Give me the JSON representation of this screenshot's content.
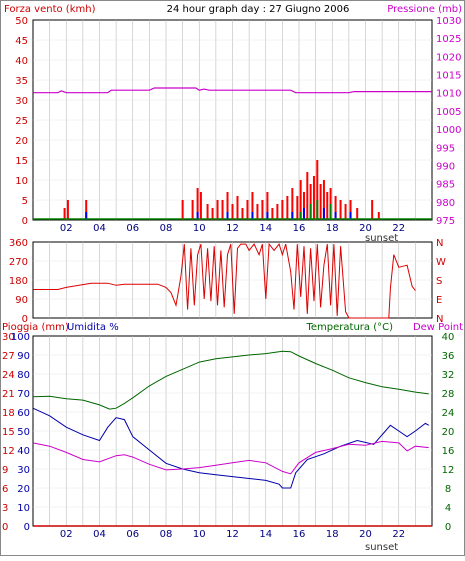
{
  "title": "24 hour graph day : 27 Giugno 2006",
  "colors": {
    "wind": "#ff0000",
    "gust_blue": "#0000ff",
    "gust_green": "#008000",
    "pressure": "#cc00cc",
    "direction": "#dd0000",
    "rain": "#cc0000",
    "humidity": "#0000aa",
    "temperature": "#006600",
    "dewpoint": "#cc00cc",
    "grid": "#bbbbbb",
    "frame": "#000000"
  },
  "chart_data": [
    {
      "type": "bar",
      "name": "wind-pressure",
      "left_label": "Forza vento (kmh)",
      "right_label": "Pressione (mb)",
      "x_ticks": [
        "02",
        "04",
        "06",
        "08",
        "10",
        "12",
        "14",
        "16",
        "18",
        "20",
        "22"
      ],
      "x_note": "sunset",
      "xlim": [
        0,
        24
      ],
      "ylim": [
        0,
        50
      ],
      "y_ticks": [
        0,
        5,
        10,
        15,
        20,
        25,
        30,
        35,
        40,
        45,
        50
      ],
      "y2lim": [
        975,
        1030
      ],
      "y2_ticks": [
        975,
        980,
        985,
        990,
        995,
        1000,
        1005,
        1010,
        1015,
        1020,
        1025,
        1030
      ],
      "wind_bars": [
        {
          "x": 1.9,
          "v": 3
        },
        {
          "x": 2.1,
          "v": 5
        },
        {
          "x": 3.2,
          "v": 5
        },
        {
          "x": 9.0,
          "v": 5
        },
        {
          "x": 9.6,
          "v": 5
        },
        {
          "x": 9.9,
          "v": 8
        },
        {
          "x": 10.1,
          "v": 7
        },
        {
          "x": 10.5,
          "v": 4
        },
        {
          "x": 10.8,
          "v": 3
        },
        {
          "x": 11.1,
          "v": 5
        },
        {
          "x": 11.4,
          "v": 5
        },
        {
          "x": 11.7,
          "v": 7
        },
        {
          "x": 12.0,
          "v": 4
        },
        {
          "x": 12.3,
          "v": 6
        },
        {
          "x": 12.6,
          "v": 3
        },
        {
          "x": 12.9,
          "v": 5
        },
        {
          "x": 13.2,
          "v": 7
        },
        {
          "x": 13.5,
          "v": 4
        },
        {
          "x": 13.8,
          "v": 5
        },
        {
          "x": 14.1,
          "v": 7
        },
        {
          "x": 14.4,
          "v": 3
        },
        {
          "x": 14.7,
          "v": 4
        },
        {
          "x": 15.0,
          "v": 5
        },
        {
          "x": 15.3,
          "v": 6
        },
        {
          "x": 15.6,
          "v": 8
        },
        {
          "x": 15.9,
          "v": 6
        },
        {
          "x": 16.1,
          "v": 10
        },
        {
          "x": 16.3,
          "v": 7
        },
        {
          "x": 16.5,
          "v": 12
        },
        {
          "x": 16.7,
          "v": 9
        },
        {
          "x": 16.9,
          "v": 11
        },
        {
          "x": 17.1,
          "v": 15
        },
        {
          "x": 17.3,
          "v": 9
        },
        {
          "x": 17.5,
          "v": 10
        },
        {
          "x": 17.7,
          "v": 7
        },
        {
          "x": 17.9,
          "v": 8
        },
        {
          "x": 18.2,
          "v": 6
        },
        {
          "x": 18.5,
          "v": 5
        },
        {
          "x": 18.8,
          "v": 4
        },
        {
          "x": 19.1,
          "v": 5
        },
        {
          "x": 19.5,
          "v": 3
        },
        {
          "x": 20.4,
          "v": 5
        },
        {
          "x": 20.8,
          "v": 2
        }
      ],
      "gust_blue_bars": [
        {
          "x": 3.2,
          "v": 2
        },
        {
          "x": 9.9,
          "v": 2
        },
        {
          "x": 11.7,
          "v": 2
        },
        {
          "x": 13.2,
          "v": 2
        },
        {
          "x": 14.1,
          "v": 2
        },
        {
          "x": 15.6,
          "v": 2
        },
        {
          "x": 16.3,
          "v": 3
        },
        {
          "x": 17.5,
          "v": 3
        },
        {
          "x": 18.2,
          "v": 2
        },
        {
          "x": 19.1,
          "v": 2
        }
      ],
      "gust_green_bars": [
        {
          "x": 16.1,
          "v": 2
        },
        {
          "x": 16.7,
          "v": 4
        },
        {
          "x": 17.1,
          "v": 5
        },
        {
          "x": 17.9,
          "v": 4
        }
      ],
      "calm_line": 0,
      "pressure": [
        {
          "x": 0,
          "v": 1010
        },
        {
          "x": 1.5,
          "v": 1010
        },
        {
          "x": 1.7,
          "v": 1010.5
        },
        {
          "x": 2.0,
          "v": 1010
        },
        {
          "x": 4.5,
          "v": 1010
        },
        {
          "x": 4.7,
          "v": 1010.7
        },
        {
          "x": 6.0,
          "v": 1010.7
        },
        {
          "x": 7.0,
          "v": 1010.7
        },
        {
          "x": 7.3,
          "v": 1011.3
        },
        {
          "x": 9.8,
          "v": 1011.3
        },
        {
          "x": 10.0,
          "v": 1010.7
        },
        {
          "x": 10.3,
          "v": 1011.0
        },
        {
          "x": 10.6,
          "v": 1010.7
        },
        {
          "x": 15.5,
          "v": 1010.7
        },
        {
          "x": 15.8,
          "v": 1010
        },
        {
          "x": 19.0,
          "v": 1010
        },
        {
          "x": 19.3,
          "v": 1010.3
        },
        {
          "x": 24.0,
          "v": 1010.3
        }
      ]
    },
    {
      "type": "scatter",
      "name": "wind-direction",
      "left_ticks": [
        "360",
        "270",
        "180",
        "90",
        "0"
      ],
      "right_ticks": [
        "N",
        "W",
        "S",
        "E",
        "N"
      ],
      "ylim": [
        0,
        360
      ],
      "x_ticks": [
        "02",
        "04",
        "06",
        "08",
        "10",
        "12",
        "14",
        "16",
        "18",
        "20",
        "22"
      ],
      "series": [
        {
          "x": 0,
          "v": 135
        },
        {
          "x": 1.5,
          "v": 135
        },
        {
          "x": 2.0,
          "v": 145
        },
        {
          "x": 3.5,
          "v": 165
        },
        {
          "x": 4.5,
          "v": 165
        },
        {
          "x": 5.0,
          "v": 155
        },
        {
          "x": 5.5,
          "v": 160
        },
        {
          "x": 7.5,
          "v": 160
        },
        {
          "x": 8.0,
          "v": 145
        },
        {
          "x": 8.3,
          "v": 120
        },
        {
          "x": 8.6,
          "v": 60
        },
        {
          "x": 8.9,
          "v": 200
        },
        {
          "x": 9.1,
          "v": 350
        },
        {
          "x": 9.3,
          "v": 40
        },
        {
          "x": 9.5,
          "v": 330
        },
        {
          "x": 9.7,
          "v": 60
        },
        {
          "x": 9.9,
          "v": 300
        },
        {
          "x": 10.1,
          "v": 350
        },
        {
          "x": 10.3,
          "v": 90
        },
        {
          "x": 10.5,
          "v": 330
        },
        {
          "x": 10.7,
          "v": 80
        },
        {
          "x": 10.9,
          "v": 340
        },
        {
          "x": 11.1,
          "v": 60
        },
        {
          "x": 11.3,
          "v": 320
        },
        {
          "x": 11.5,
          "v": 50
        },
        {
          "x": 11.7,
          "v": 300
        },
        {
          "x": 11.9,
          "v": 350
        },
        {
          "x": 12.1,
          "v": 20
        },
        {
          "x": 12.3,
          "v": 330
        },
        {
          "x": 12.5,
          "v": 350
        },
        {
          "x": 12.8,
          "v": 350
        },
        {
          "x": 13.0,
          "v": 320
        },
        {
          "x": 13.3,
          "v": 350
        },
        {
          "x": 13.6,
          "v": 300
        },
        {
          "x": 13.8,
          "v": 350
        },
        {
          "x": 14.0,
          "v": 90
        },
        {
          "x": 14.2,
          "v": 350
        },
        {
          "x": 14.5,
          "v": 320
        },
        {
          "x": 14.8,
          "v": 350
        },
        {
          "x": 15.0,
          "v": 300
        },
        {
          "x": 15.2,
          "v": 350
        },
        {
          "x": 15.5,
          "v": 220
        },
        {
          "x": 15.7,
          "v": 40
        },
        {
          "x": 15.9,
          "v": 350
        },
        {
          "x": 16.1,
          "v": 100
        },
        {
          "x": 16.3,
          "v": 340
        },
        {
          "x": 16.5,
          "v": 20
        },
        {
          "x": 16.7,
          "v": 330
        },
        {
          "x": 16.9,
          "v": 80
        },
        {
          "x": 17.1,
          "v": 350
        },
        {
          "x": 17.3,
          "v": 50
        },
        {
          "x": 17.5,
          "v": 250
        },
        {
          "x": 17.7,
          "v": 350
        },
        {
          "x": 17.9,
          "v": 60
        },
        {
          "x": 18.1,
          "v": 350
        },
        {
          "x": 18.3,
          "v": 10
        },
        {
          "x": 18.5,
          "v": 340
        },
        {
          "x": 18.8,
          "v": 30
        },
        {
          "x": 19.0,
          "v": 0
        },
        {
          "x": 21.4,
          "v": 0
        },
        {
          "x": 21.5,
          "v": 140
        },
        {
          "x": 21.7,
          "v": 300
        },
        {
          "x": 22.0,
          "v": 240
        },
        {
          "x": 22.5,
          "v": 250
        },
        {
          "x": 22.8,
          "v": 150
        },
        {
          "x": 23.0,
          "v": 130
        }
      ]
    },
    {
      "type": "line",
      "name": "rain-humidity-temperature",
      "left_label_1": "Pioggia (mm)",
      "left_label_2": "Umidita %",
      "right_label_1": "Temperatura (°C)",
      "right_label_2": "Dew Point",
      "rain_ticks": [
        "0",
        "3",
        "6",
        "9",
        "12",
        "15",
        "18",
        "21",
        "24",
        "27",
        "30"
      ],
      "humidity_ticks": [
        "0",
        "10",
        "20",
        "30",
        "40",
        "50",
        "60",
        "70",
        "80",
        "90",
        "100"
      ],
      "temp_ticks": [
        "0",
        "4",
        "8",
        "12",
        "16",
        "20",
        "24",
        "28",
        "32",
        "36",
        "40"
      ],
      "x_ticks": [
        "02",
        "04",
        "06",
        "08",
        "10",
        "12",
        "14",
        "16",
        "18",
        "20",
        "22"
      ],
      "x_note": "sunset",
      "ylim_temp": [
        0,
        40
      ],
      "ylim_humidity": [
        0,
        100
      ],
      "ylim_rain": [
        0,
        30
      ],
      "rain": [
        {
          "x": 0,
          "v": 0
        },
        {
          "x": 24,
          "v": 0
        }
      ],
      "temperature": [
        {
          "x": 0,
          "v": 27.2
        },
        {
          "x": 1.0,
          "v": 27.3
        },
        {
          "x": 2.0,
          "v": 26.8
        },
        {
          "x": 3.0,
          "v": 26.5
        },
        {
          "x": 4.0,
          "v": 25.5
        },
        {
          "x": 4.6,
          "v": 24.6
        },
        {
          "x": 5.0,
          "v": 24.8
        },
        {
          "x": 5.5,
          "v": 25.8
        },
        {
          "x": 6.0,
          "v": 27.0
        },
        {
          "x": 7.0,
          "v": 29.5
        },
        {
          "x": 8.0,
          "v": 31.5
        },
        {
          "x": 9.0,
          "v": 33.0
        },
        {
          "x": 10.0,
          "v": 34.5
        },
        {
          "x": 11.0,
          "v": 35.2
        },
        {
          "x": 12.0,
          "v": 35.6
        },
        {
          "x": 13.0,
          "v": 36.0
        },
        {
          "x": 14.0,
          "v": 36.3
        },
        {
          "x": 15.0,
          "v": 36.8
        },
        {
          "x": 15.5,
          "v": 36.7
        },
        {
          "x": 16.0,
          "v": 35.8
        },
        {
          "x": 17.0,
          "v": 34.2
        },
        {
          "x": 18.0,
          "v": 32.8
        },
        {
          "x": 19.0,
          "v": 31.2
        },
        {
          "x": 20.0,
          "v": 30.2
        },
        {
          "x": 21.0,
          "v": 29.3
        },
        {
          "x": 22.0,
          "v": 28.8
        },
        {
          "x": 23.0,
          "v": 28.2
        },
        {
          "x": 23.8,
          "v": 27.8
        }
      ],
      "humidity": [
        {
          "x": 0,
          "v": 62
        },
        {
          "x": 1.0,
          "v": 58
        },
        {
          "x": 2.0,
          "v": 52
        },
        {
          "x": 3.0,
          "v": 48
        },
        {
          "x": 4.0,
          "v": 45
        },
        {
          "x": 4.5,
          "v": 52
        },
        {
          "x": 5.0,
          "v": 57
        },
        {
          "x": 5.5,
          "v": 56
        },
        {
          "x": 6.0,
          "v": 47
        },
        {
          "x": 7.0,
          "v": 40
        },
        {
          "x": 8.0,
          "v": 33
        },
        {
          "x": 9.0,
          "v": 30
        },
        {
          "x": 10.0,
          "v": 28
        },
        {
          "x": 11.0,
          "v": 27
        },
        {
          "x": 12.0,
          "v": 26
        },
        {
          "x": 13.0,
          "v": 25
        },
        {
          "x": 14.0,
          "v": 24
        },
        {
          "x": 14.8,
          "v": 22
        },
        {
          "x": 15.0,
          "v": 20
        },
        {
          "x": 15.5,
          "v": 20
        },
        {
          "x": 15.8,
          "v": 28
        },
        {
          "x": 16.5,
          "v": 35
        },
        {
          "x": 17.5,
          "v": 38
        },
        {
          "x": 18.5,
          "v": 42
        },
        {
          "x": 19.5,
          "v": 45
        },
        {
          "x": 20.5,
          "v": 43
        },
        {
          "x": 21.5,
          "v": 53
        },
        {
          "x": 22.0,
          "v": 50
        },
        {
          "x": 22.5,
          "v": 47
        },
        {
          "x": 23.0,
          "v": 50
        },
        {
          "x": 23.6,
          "v": 54
        },
        {
          "x": 23.8,
          "v": 53
        }
      ],
      "dewpoint": [
        {
          "x": 0,
          "v": 17.5
        },
        {
          "x": 1.0,
          "v": 16.8
        },
        {
          "x": 2.0,
          "v": 15.5
        },
        {
          "x": 3.0,
          "v": 14.0
        },
        {
          "x": 4.0,
          "v": 13.5
        },
        {
          "x": 5.0,
          "v": 14.8
        },
        {
          "x": 5.5,
          "v": 15.0
        },
        {
          "x": 6.0,
          "v": 14.5
        },
        {
          "x": 7.0,
          "v": 13.0
        },
        {
          "x": 8.0,
          "v": 11.8
        },
        {
          "x": 9.0,
          "v": 12.0
        },
        {
          "x": 10.0,
          "v": 12.3
        },
        {
          "x": 11.0,
          "v": 12.8
        },
        {
          "x": 12.0,
          "v": 13.3
        },
        {
          "x": 13.0,
          "v": 13.8
        },
        {
          "x": 14.0,
          "v": 13.3
        },
        {
          "x": 15.0,
          "v": 11.5
        },
        {
          "x": 15.5,
          "v": 11.0
        },
        {
          "x": 16.0,
          "v": 13.3
        },
        {
          "x": 17.0,
          "v": 15.5
        },
        {
          "x": 18.0,
          "v": 16.3
        },
        {
          "x": 19.0,
          "v": 17.2
        },
        {
          "x": 20.0,
          "v": 17.0
        },
        {
          "x": 21.0,
          "v": 17.8
        },
        {
          "x": 22.0,
          "v": 17.5
        },
        {
          "x": 22.5,
          "v": 15.8
        },
        {
          "x": 23.0,
          "v": 16.8
        },
        {
          "x": 23.8,
          "v": 16.5
        }
      ]
    }
  ]
}
